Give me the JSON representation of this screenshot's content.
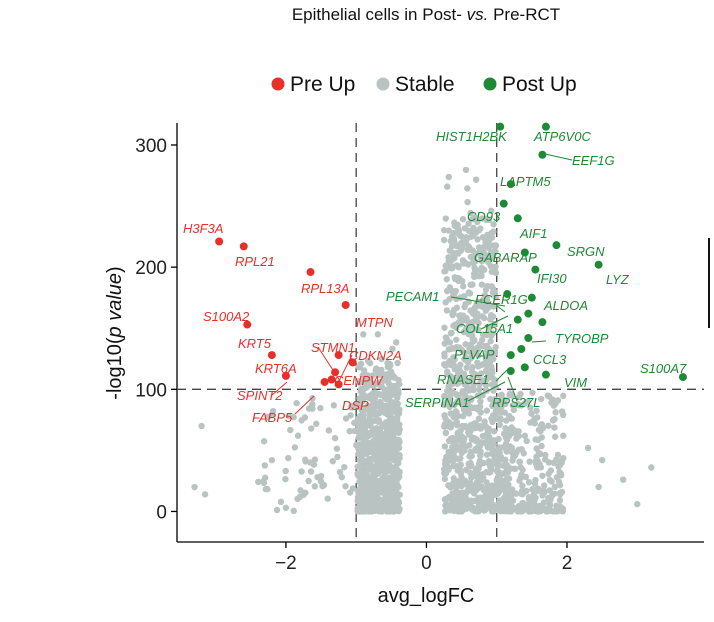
{
  "chart_data": {
    "type": "scatter",
    "title": "Epithelial cells in Post- vs. Pre-RCT",
    "xlabel": "avg_logFC",
    "ylabel": "-log10(p value)",
    "xlim": [
      -3.55,
      3.95
    ],
    "ylim": [
      -25,
      318
    ],
    "x_ticks": [
      -2,
      0,
      2
    ],
    "x_tick_labels": [
      "−2",
      "0",
      "2"
    ],
    "y_ticks": [
      0,
      100,
      200,
      300
    ],
    "y_tick_labels": [
      "0",
      "100",
      "200",
      "300"
    ],
    "thresholds": {
      "logfc": [
        -1,
        1
      ],
      "pvalue": 100
    },
    "legend_position": "top",
    "colors": {
      "pre_up": "#e8302a",
      "stable": "#b9c3c1",
      "post_up": "#1f8a36"
    },
    "series": [
      {
        "name": "Pre Up",
        "points": [
          {
            "gene": "H3F3A",
            "x": -2.95,
            "y": 221
          },
          {
            "gene": "RPL21",
            "x": -2.6,
            "y": 217
          },
          {
            "gene": "RPL13A",
            "x": -1.65,
            "y": 196
          },
          {
            "gene": "MTPN",
            "x": -1.15,
            "y": 169
          },
          {
            "gene": "S100A2",
            "x": -2.55,
            "y": 153
          },
          {
            "gene": "STMN1",
            "x": -1.25,
            "y": 128
          },
          {
            "gene": "KRT5",
            "x": -2.2,
            "y": 128
          },
          {
            "gene": "CDKN2A",
            "x": -1.05,
            "y": 122
          },
          {
            "gene": "KRT6A",
            "x": -1.3,
            "y": 114
          },
          {
            "gene": "SPINT2",
            "x": -2.0,
            "y": 111
          },
          {
            "gene": "CENPW",
            "x": -1.35,
            "y": 108
          },
          {
            "gene": "FABP5",
            "x": -1.25,
            "y": 104
          },
          {
            "gene": "DSP",
            "x": -1.45,
            "y": 106
          }
        ]
      },
      {
        "name": "Stable",
        "points": []
      },
      {
        "name": "Post Up",
        "points": [
          {
            "gene": "HIST1H2BK",
            "x": 1.05,
            "y": 315
          },
          {
            "gene": "ATP6V0C",
            "x": 1.7,
            "y": 315
          },
          {
            "gene": "EEF1G",
            "x": 1.65,
            "y": 292
          },
          {
            "gene": "LAPTM5",
            "x": 1.2,
            "y": 268
          },
          {
            "gene": "CD93",
            "x": 1.1,
            "y": 252
          },
          {
            "gene": "AIF1",
            "x": 1.3,
            "y": 240
          },
          {
            "gene": "SRGN",
            "x": 1.85,
            "y": 218
          },
          {
            "gene": "GABARAP",
            "x": 1.4,
            "y": 212
          },
          {
            "gene": "LYZ",
            "x": 2.45,
            "y": 202
          },
          {
            "gene": "IFI30",
            "x": 1.55,
            "y": 198
          },
          {
            "gene": "PECAM1",
            "x": 1.15,
            "y": 178
          },
          {
            "gene": "FCER1G",
            "x": 1.5,
            "y": 175
          },
          {
            "gene": "ALDOA",
            "x": 1.45,
            "y": 162
          },
          {
            "gene": "COL15A1",
            "x": 1.3,
            "y": 157
          },
          {
            "gene": "TYROBP",
            "x": 1.65,
            "y": 155
          },
          {
            "gene": "CCL3",
            "x": 1.45,
            "y": 142
          },
          {
            "gene": "PLVAP",
            "x": 1.35,
            "y": 133
          },
          {
            "gene": "RNASE1",
            "x": 1.2,
            "y": 128
          },
          {
            "gene": "S100A7",
            "x": 3.65,
            "y": 110
          },
          {
            "gene": "VIM",
            "x": 1.7,
            "y": 112
          },
          {
            "gene": "SERPINA1",
            "x": 1.2,
            "y": 115
          },
          {
            "gene": "RPS27L",
            "x": 1.4,
            "y": 118
          }
        ]
      }
    ],
    "labels": [
      {
        "gene": "H3F3A",
        "color": "pre_up"
      },
      {
        "gene": "RPL21",
        "color": "pre_up"
      },
      {
        "gene": "RPL13A",
        "color": "pre_up"
      },
      {
        "gene": "MTPN",
        "color": "pre_up"
      },
      {
        "gene": "S100A2",
        "color": "pre_up"
      },
      {
        "gene": "STMN1",
        "color": "pre_up"
      },
      {
        "gene": "KRT5",
        "color": "pre_up"
      },
      {
        "gene": "CDKN2A",
        "color": "pre_up"
      },
      {
        "gene": "KRT6A",
        "color": "pre_up"
      },
      {
        "gene": "CENPW",
        "color": "pre_up"
      },
      {
        "gene": "SPINT2",
        "color": "pre_up"
      },
      {
        "gene": "DSP",
        "color": "pre_up"
      },
      {
        "gene": "FABP5",
        "color": "pre_up"
      },
      {
        "gene": "HIST1H2BK",
        "color": "post_up"
      },
      {
        "gene": "ATP6V0C",
        "color": "post_up"
      },
      {
        "gene": "EEF1G",
        "color": "post_up"
      },
      {
        "gene": "LAPTM5",
        "color": "post_up"
      },
      {
        "gene": "CD93",
        "color": "post_up"
      },
      {
        "gene": "AIF1",
        "color": "post_up"
      },
      {
        "gene": "SRGN",
        "color": "post_up"
      },
      {
        "gene": "GABARAP",
        "color": "post_up"
      },
      {
        "gene": "LYZ",
        "color": "post_up"
      },
      {
        "gene": "IFI30",
        "color": "post_up"
      },
      {
        "gene": "PECAM1",
        "color": "post_up"
      },
      {
        "gene": "FCER1G",
        "color": "post_up"
      },
      {
        "gene": "ALDOA",
        "color": "post_up"
      },
      {
        "gene": "COL15A1",
        "color": "post_up"
      },
      {
        "gene": "TYROBP",
        "color": "post_up"
      },
      {
        "gene": "PLVAP",
        "color": "post_up"
      },
      {
        "gene": "CCL3",
        "color": "post_up"
      },
      {
        "gene": "S100A7",
        "color": "post_up"
      },
      {
        "gene": "RNASE1",
        "color": "post_up"
      },
      {
        "gene": "VIM",
        "color": "post_up"
      },
      {
        "gene": "SERPINA1",
        "color": "post_up"
      },
      {
        "gene": "RPS27L",
        "color": "post_up"
      }
    ]
  }
}
